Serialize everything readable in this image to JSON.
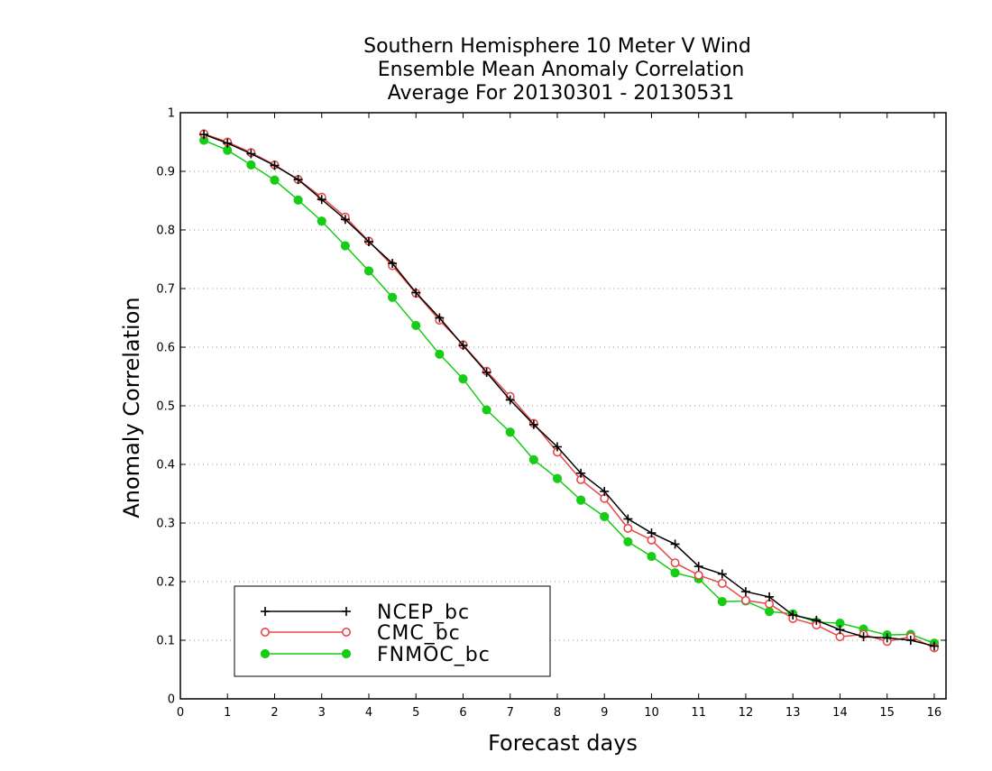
{
  "chart_data": {
    "type": "line",
    "title_lines": [
      "Southern Hemisphere 10 Meter V Wind",
      "Ensemble Mean Anomaly Correlation",
      "Average For 20130301 - 20130531"
    ],
    "xlabel": "Forecast days",
    "ylabel": "Anomaly Correlation",
    "xlim": [
      0,
      16.25
    ],
    "ylim": [
      0,
      1
    ],
    "x_ticks": [
      0,
      1,
      2,
      3,
      4,
      5,
      6,
      7,
      8,
      9,
      10,
      11,
      12,
      13,
      14,
      15,
      16
    ],
    "y_ticks": [
      0,
      0.1,
      0.2,
      0.3,
      0.4,
      0.5,
      0.6,
      0.7,
      0.8,
      0.9,
      1
    ],
    "y_tick_labels": [
      "0",
      "0.1",
      "0.2",
      "0.3",
      "0.4",
      "0.5",
      "0.6",
      "0.7",
      "0.8",
      "0.9",
      "1"
    ],
    "grid": "horizontal dotted",
    "legend_position": "bottom-left",
    "x": [
      0.5,
      1.0,
      1.5,
      2.0,
      2.5,
      3.0,
      3.5,
      4.0,
      4.5,
      5.0,
      5.5,
      6.0,
      6.5,
      7.0,
      7.5,
      8.0,
      8.5,
      9.0,
      9.5,
      10.0,
      10.5,
      11.0,
      11.5,
      12.0,
      12.5,
      13.0,
      13.5,
      14.0,
      14.5,
      15.0,
      15.5,
      16.0
    ],
    "series": [
      {
        "name": "NCEP_bc",
        "color": "#000000",
        "marker": "plus",
        "values": [
          0.963,
          0.948,
          0.93,
          0.91,
          0.886,
          0.852,
          0.818,
          0.78,
          0.743,
          0.693,
          0.65,
          0.603,
          0.557,
          0.51,
          0.468,
          0.43,
          0.385,
          0.354,
          0.307,
          0.283,
          0.264,
          0.226,
          0.213,
          0.183,
          0.174,
          0.143,
          0.134,
          0.118,
          0.106,
          0.104,
          0.1,
          0.09
        ]
      },
      {
        "name": "CMC_bc",
        "color": "#e8484a",
        "marker": "open-circle",
        "values": [
          0.964,
          0.95,
          0.932,
          0.911,
          0.886,
          0.856,
          0.822,
          0.781,
          0.739,
          0.692,
          0.646,
          0.604,
          0.559,
          0.516,
          0.47,
          0.421,
          0.374,
          0.342,
          0.291,
          0.271,
          0.232,
          0.211,
          0.197,
          0.168,
          0.162,
          0.137,
          0.126,
          0.106,
          0.11,
          0.098,
          0.106,
          0.087
        ]
      },
      {
        "name": "FNMOC_bc",
        "color": "#17cc17",
        "marker": "filled-circle",
        "values": [
          0.953,
          0.936,
          0.911,
          0.885,
          0.851,
          0.815,
          0.773,
          0.73,
          0.685,
          0.637,
          0.588,
          0.546,
          0.493,
          0.455,
          0.408,
          0.376,
          0.339,
          0.311,
          0.268,
          0.243,
          0.215,
          0.205,
          0.166,
          0.167,
          0.149,
          0.145,
          0.131,
          0.129,
          0.119,
          0.109,
          0.11,
          0.095
        ]
      }
    ]
  }
}
